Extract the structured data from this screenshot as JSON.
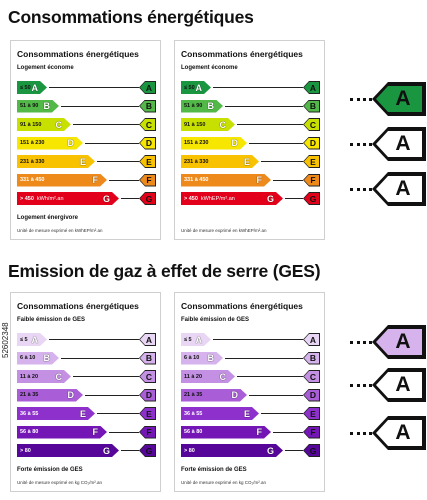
{
  "energy": {
    "title": "Consommations énergétiques",
    "cards": [
      {
        "title": "Consommations énergétiques",
        "top_label": "Logement économe",
        "bottom_label": "Logement énergivore",
        "footer": "Unité de mesure exprimé en kWhEP/m².an",
        "bars": [
          {
            "range": "≤ 50",
            "letter": "A",
            "color": "#1a9641"
          },
          {
            "range": "51 à 90",
            "letter": "B",
            "color": "#52b848"
          },
          {
            "range": "91 à 150",
            "letter": "C",
            "color": "#c8e000"
          },
          {
            "range": "151 à 230",
            "letter": "D",
            "color": "#f6e600"
          },
          {
            "range": "231 à 330",
            "letter": "E",
            "color": "#f8c200"
          },
          {
            "range": "331 à 450",
            "letter": "F",
            "color": "#ee8a1c"
          },
          {
            "range": "> 450",
            "letter": "G",
            "color": "#e2001a",
            "unit": "kWh/m².an"
          }
        ]
      },
      {
        "title": "Consommations énergétiques",
        "top_label": "Logement économe",
        "bottom_label": "",
        "footer": "Unité de mesure exprimé en kWhEP/m².an",
        "bars": [
          {
            "range": "≤ 50",
            "letter": "A",
            "color": "#1a9641"
          },
          {
            "range": "51 à 90",
            "letter": "B",
            "color": "#52b848"
          },
          {
            "range": "91 à 150",
            "letter": "C",
            "color": "#c8e000"
          },
          {
            "range": "151 à 230",
            "letter": "D",
            "color": "#f6e600"
          },
          {
            "range": "231 à 330",
            "letter": "E",
            "color": "#f8c200"
          },
          {
            "range": "331 à 450",
            "letter": "F",
            "color": "#ee8a1c"
          },
          {
            "range": "> 450",
            "letter": "G",
            "color": "#e2001a",
            "unit": "kWhEP/m².an"
          }
        ]
      }
    ],
    "tags": [
      {
        "letter": "A",
        "fill": "#1a9641"
      },
      {
        "letter": "A",
        "fill": "#ffffff"
      },
      {
        "letter": "A",
        "fill": "#ffffff"
      }
    ]
  },
  "ges": {
    "title": "Emission de gaz à effet de serre (GES)",
    "cards": [
      {
        "title": "Consommations énergétiques",
        "top_label": "Faible émission de GES",
        "bottom_label": "Forte émission de GES",
        "footer": "Unité de mesure exprimé en kg CO₂/m².an",
        "bars": [
          {
            "range": "≤ 5",
            "letter": "A",
            "color": "#e8d6f4"
          },
          {
            "range": "6 à 10",
            "letter": "B",
            "color": "#d6b3ec"
          },
          {
            "range": "11 à 20",
            "letter": "C",
            "color": "#c490e4"
          },
          {
            "range": "21 à 35",
            "letter": "D",
            "color": "#a95ed8"
          },
          {
            "range": "36 à 55",
            "letter": "E",
            "color": "#8e30cc"
          },
          {
            "range": "56 à 80",
            "letter": "F",
            "color": "#7416b6"
          },
          {
            "range": "> 80",
            "letter": "G",
            "color": "#57069a"
          }
        ]
      },
      {
        "title": "Consommations énergétiques",
        "top_label": "Faible émission de GES",
        "bottom_label": "Forte émission de GES",
        "footer": "Unité de mesure exprimé en kg CO₂/m².an",
        "bars": [
          {
            "range": "≤ 5",
            "letter": "A",
            "color": "#e8d6f4"
          },
          {
            "range": "6 à 10",
            "letter": "B",
            "color": "#d6b3ec"
          },
          {
            "range": "11 à 20",
            "letter": "C",
            "color": "#c490e4"
          },
          {
            "range": "21 à 35",
            "letter": "D",
            "color": "#a95ed8"
          },
          {
            "range": "36 à 55",
            "letter": "E",
            "color": "#8e30cc"
          },
          {
            "range": "56 à 80",
            "letter": "F",
            "color": "#7416b6"
          },
          {
            "range": "> 80",
            "letter": "G",
            "color": "#57069a"
          }
        ]
      }
    ],
    "tags": [
      {
        "letter": "A",
        "fill": "#d6b3ec"
      },
      {
        "letter": "A",
        "fill": "#ffffff"
      },
      {
        "letter": "A",
        "fill": "#ffffff"
      }
    ]
  },
  "image_id": "52602348"
}
